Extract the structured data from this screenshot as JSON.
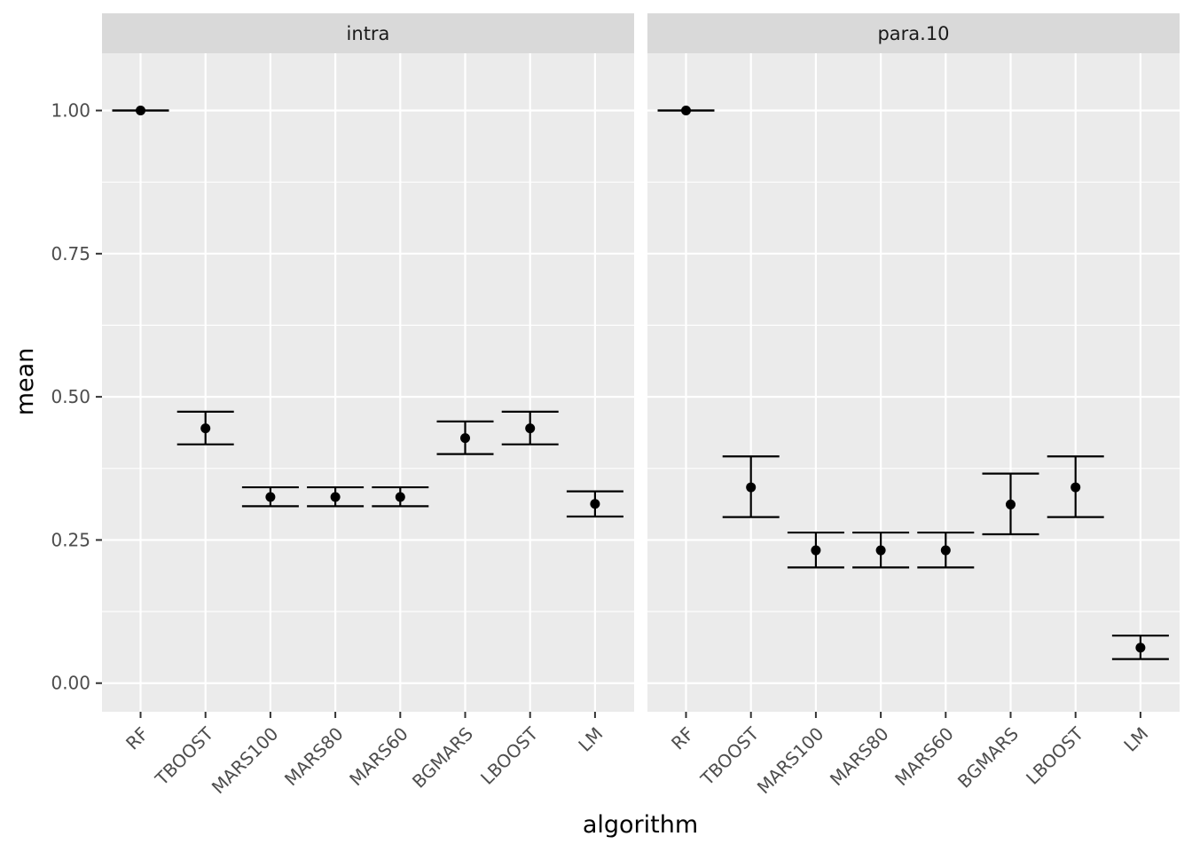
{
  "chart_data": {
    "type": "scatter",
    "subtype": "point-with-errorbars, faceted",
    "xlabel": "algorithm",
    "ylabel": "mean",
    "categories": [
      "RF",
      "TBOOST",
      "MARS100",
      "MARS80",
      "MARS60",
      "BGMARS",
      "LBOOST",
      "LM"
    ],
    "ylim": [
      -0.05,
      1.1
    ],
    "yticks": [
      0,
      0.25,
      0.5,
      0.75,
      1
    ],
    "ytick_labels": [
      "0.00",
      "0.25",
      "0.50",
      "0.75",
      "1.00"
    ],
    "grid": true,
    "legend": "none",
    "panels": [
      {
        "name": "intra",
        "mean": [
          1.0,
          0.445,
          0.325,
          0.325,
          0.325,
          0.428,
          0.445,
          0.313
        ],
        "lower": [
          1.0,
          0.417,
          0.309,
          0.309,
          0.309,
          0.4,
          0.417,
          0.291
        ],
        "upper": [
          1.0,
          0.474,
          0.342,
          0.342,
          0.342,
          0.457,
          0.474,
          0.335
        ]
      },
      {
        "name": "para.10",
        "mean": [
          1.0,
          0.342,
          0.232,
          0.232,
          0.232,
          0.312,
          0.342,
          0.062
        ],
        "lower": [
          1.0,
          0.29,
          0.202,
          0.202,
          0.202,
          0.26,
          0.29,
          0.042
        ],
        "upper": [
          1.0,
          0.396,
          0.263,
          0.263,
          0.263,
          0.366,
          0.396,
          0.083
        ]
      }
    ]
  },
  "colors": {
    "panel_background": "#ebebeb",
    "strip_background": "#d9d9d9",
    "grid": "#ffffff",
    "marks": "#000000",
    "tick": "#333333"
  }
}
